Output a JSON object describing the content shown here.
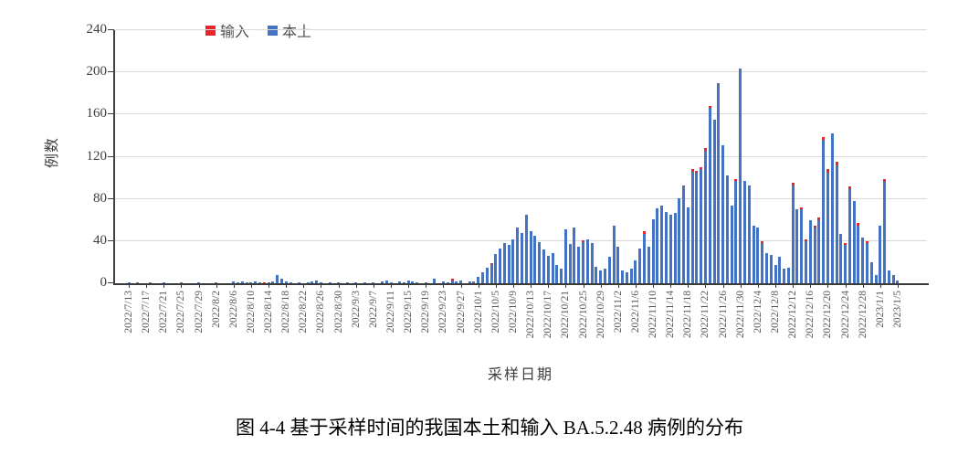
{
  "figure": {
    "caption": "图 4-4 基于采样时间的我国本土和输入 BA.5.2.48 病例的分布"
  },
  "chart_data": {
    "type": "bar",
    "stacked": true,
    "xlabel": "采样日期",
    "ylabel": "例数",
    "ylim": [
      0,
      240
    ],
    "yticks": [
      0,
      40,
      80,
      120,
      160,
      200,
      240
    ],
    "grid": "horizontal",
    "legend_position": "top-left",
    "x_tick_label_every": 4,
    "colors": {
      "imported": "#e8262a",
      "local": "#4472c4",
      "gridline": "#d9d9d9",
      "axis": "#404040"
    },
    "categories": [
      "2022/7/13",
      "2022/7/14",
      "2022/7/15",
      "2022/7/16",
      "2022/7/17",
      "2022/7/18",
      "2022/7/19",
      "2022/7/20",
      "2022/7/21",
      "2022/7/22",
      "2022/7/23",
      "2022/7/24",
      "2022/7/25",
      "2022/7/26",
      "2022/7/27",
      "2022/7/28",
      "2022/7/29",
      "2022/7/30",
      "2022/7/31",
      "2022/8/1",
      "2022/8/2",
      "2022/8/3",
      "2022/8/4",
      "2022/8/5",
      "2022/8/6",
      "2022/8/7",
      "2022/8/8",
      "2022/8/9",
      "2022/8/10",
      "2022/8/11",
      "2022/8/12",
      "2022/8/13",
      "2022/8/14",
      "2022/8/15",
      "2022/8/16",
      "2022/8/17",
      "2022/8/18",
      "2022/8/19",
      "2022/8/20",
      "2022/8/21",
      "2022/8/22",
      "2022/8/23",
      "2022/8/24",
      "2022/8/25",
      "2022/8/26",
      "2022/8/27",
      "2022/8/28",
      "2022/8/29",
      "2022/8/30",
      "2022/8/31",
      "2022/9/1",
      "2022/9/2",
      "2022/9/3",
      "2022/9/4",
      "2022/9/5",
      "2022/9/6",
      "2022/9/7",
      "2022/9/8",
      "2022/9/9",
      "2022/9/10",
      "2022/9/11",
      "2022/9/12",
      "2022/9/13",
      "2022/9/14",
      "2022/9/15",
      "2022/9/16",
      "2022/9/17",
      "2022/9/18",
      "2022/9/19",
      "2022/9/20",
      "2022/9/21",
      "2022/9/22",
      "2022/9/23",
      "2022/9/24",
      "2022/9/25",
      "2022/9/26",
      "2022/9/27",
      "2022/9/28",
      "2022/9/29",
      "2022/9/30",
      "2022/10/1",
      "2022/10/2",
      "2022/10/3",
      "2022/10/4",
      "2022/10/5",
      "2022/10/6",
      "2022/10/7",
      "2022/10/8",
      "2022/10/9",
      "2022/10/10",
      "2022/10/11",
      "2022/10/12",
      "2022/10/13",
      "2022/10/14",
      "2022/10/15",
      "2022/10/16",
      "2022/10/17",
      "2022/10/18",
      "2022/10/19",
      "2022/10/20",
      "2022/10/21",
      "2022/10/22",
      "2022/10/23",
      "2022/10/24",
      "2022/10/25",
      "2022/10/26",
      "2022/10/27",
      "2022/10/28",
      "2022/10/29",
      "2022/10/30",
      "2022/10/31",
      "2022/11/1",
      "2022/11/2",
      "2022/11/3",
      "2022/11/4",
      "2022/11/5",
      "2022/11/6",
      "2022/11/7",
      "2022/11/8",
      "2022/11/9",
      "2022/11/10",
      "2022/11/11",
      "2022/11/12",
      "2022/11/13",
      "2022/11/14",
      "2022/11/15",
      "2022/11/16",
      "2022/11/17",
      "2022/11/18",
      "2022/11/19",
      "2022/11/20",
      "2022/11/21",
      "2022/11/22",
      "2022/11/23",
      "2022/11/24",
      "2022/11/25",
      "2022/11/26",
      "2022/11/27",
      "2022/11/28",
      "2022/11/29",
      "2022/11/30",
      "2022/12/1",
      "2022/12/2",
      "2022/12/3",
      "2022/12/4",
      "2022/12/5",
      "2022/12/6",
      "2022/12/7",
      "2022/12/8",
      "2022/12/9",
      "2022/12/10",
      "2022/12/11",
      "2022/12/12",
      "2022/12/13",
      "2022/12/14",
      "2022/12/15",
      "2022/12/16",
      "2022/12/17",
      "2022/12/18",
      "2022/12/19",
      "2022/12/20",
      "2022/12/21",
      "2022/12/22",
      "2022/12/23",
      "2022/12/24",
      "2022/12/25",
      "2022/12/26",
      "2022/12/27",
      "2022/12/28",
      "2022/12/29",
      "2022/12/30",
      "2022/12/31",
      "2023/1/1",
      "2023/1/2",
      "2023/1/3",
      "2023/1/4",
      "2023/1/5"
    ],
    "series": [
      {
        "name": "输入",
        "key": "imported",
        "values": [
          0,
          0,
          0,
          0,
          0,
          0,
          0,
          0,
          0,
          0,
          0,
          0,
          0,
          0,
          0,
          0,
          0,
          0,
          0,
          0,
          0,
          0,
          0,
          0,
          0,
          0,
          0,
          0,
          0,
          0,
          0,
          1,
          0,
          0,
          0,
          0,
          0,
          0,
          0,
          0,
          0,
          0,
          0,
          0,
          0,
          0,
          0,
          0,
          0,
          0,
          0,
          0,
          0,
          0,
          0,
          0,
          0,
          0,
          0,
          0,
          0,
          0,
          0,
          0,
          0,
          0,
          0,
          0,
          0,
          0,
          0,
          0,
          0,
          0,
          1,
          0,
          0,
          0,
          0,
          0,
          0,
          0,
          0,
          1,
          0,
          0,
          0,
          0,
          0,
          0,
          0,
          0,
          0,
          0,
          0,
          0,
          0,
          0,
          0,
          0,
          0,
          0,
          0,
          0,
          2,
          0,
          0,
          0,
          0,
          0,
          0,
          0,
          0,
          0,
          0,
          0,
          0,
          0,
          2,
          0,
          0,
          0,
          0,
          0,
          0,
          0,
          0,
          0,
          0,
          2,
          2,
          2,
          2,
          2,
          0,
          0,
          0,
          0,
          0,
          2,
          0,
          0,
          0,
          0,
          0,
          2,
          0,
          0,
          0,
          0,
          0,
          0,
          2,
          0,
          2,
          2,
          0,
          2,
          2,
          3,
          3,
          0,
          3,
          0,
          2,
          3,
          0,
          2,
          0,
          2,
          0,
          0,
          0,
          3,
          0,
          0,
          0
        ]
      },
      {
        "name": "本土",
        "key": "local",
        "values": [
          1,
          0,
          1,
          0,
          0,
          1,
          0,
          0,
          1,
          0,
          0,
          0,
          1,
          0,
          0,
          0,
          1,
          0,
          0,
          0,
          1,
          0,
          0,
          0,
          2,
          1,
          2,
          1,
          1,
          2,
          1,
          0,
          1,
          2,
          8,
          4,
          2,
          1,
          0,
          1,
          0,
          1,
          2,
          3,
          1,
          0,
          1,
          0,
          1,
          0,
          1,
          0,
          1,
          0,
          1,
          0,
          1,
          0,
          2,
          3,
          1,
          0,
          2,
          1,
          3,
          2,
          1,
          0,
          1,
          0,
          4,
          0,
          2,
          1,
          3,
          2,
          3,
          0,
          2,
          2,
          6,
          10,
          15,
          18,
          28,
          33,
          38,
          36,
          42,
          53,
          48,
          65,
          49,
          45,
          39,
          32,
          26,
          29,
          17,
          14,
          51,
          37,
          53,
          35,
          39,
          42,
          38,
          16,
          12,
          14,
          25,
          55,
          35,
          12,
          10,
          14,
          22,
          33,
          47,
          35,
          61,
          71,
          74,
          68,
          65,
          67,
          81,
          93,
          72,
          106,
          105,
          108,
          126,
          166,
          155,
          190,
          131,
          102,
          74,
          97,
          204,
          97,
          93,
          55,
          53,
          38,
          29,
          27,
          17,
          25,
          14,
          15,
          93,
          70,
          70,
          40,
          60,
          53,
          60,
          136,
          105,
          142,
          112,
          47,
          36,
          89,
          78,
          55,
          43,
          38,
          20,
          8,
          55,
          96,
          12,
          8,
          3
        ]
      }
    ]
  }
}
